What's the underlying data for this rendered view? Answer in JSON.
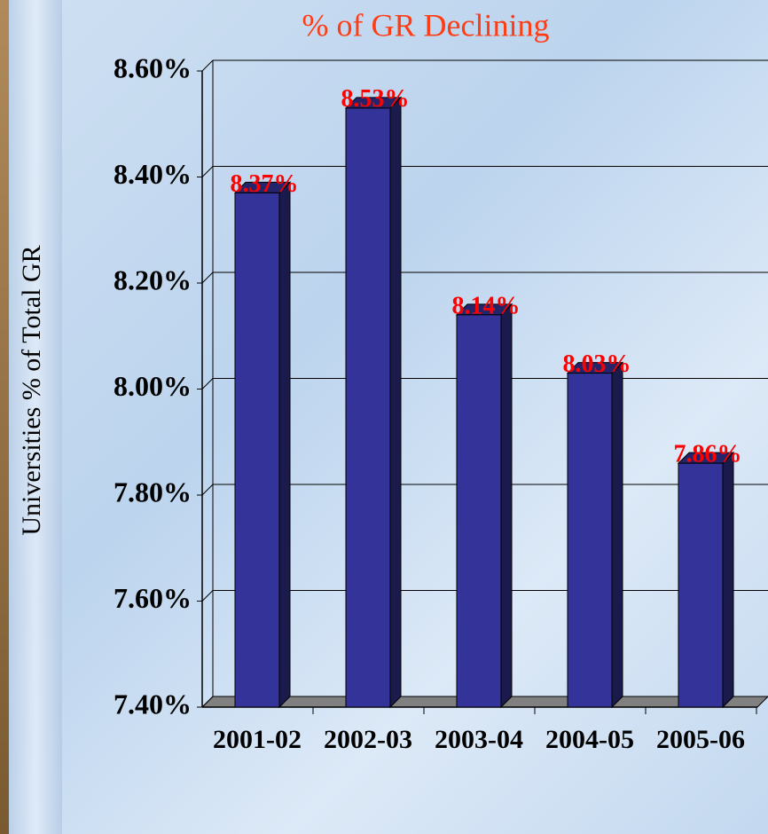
{
  "chart_data": {
    "type": "bar",
    "title": "% of GR Declining",
    "y_label": "Universities % of Total GR",
    "categories": [
      "2001-02",
      "2002-03",
      "2003-04",
      "2004-05",
      "2005-06"
    ],
    "values": [
      8.37,
      8.53,
      8.14,
      8.03,
      7.86
    ],
    "value_labels": [
      "8.37%",
      "8.53%",
      "8.14%",
      "8.03%",
      "7.86%"
    ],
    "color": "#333399",
    "ylim": [
      7.4,
      8.6
    ],
    "yticks": [
      {
        "value": 7.4,
        "label": "7.40%"
      },
      {
        "value": 7.6,
        "label": "7.60%"
      },
      {
        "value": 7.8,
        "label": "7.80%"
      },
      {
        "value": 8.0,
        "label": "8.00%"
      },
      {
        "value": 8.2,
        "label": "8.20%"
      },
      {
        "value": 8.4,
        "label": "8.40%"
      },
      {
        "value": 8.6,
        "label": "8.60%"
      }
    ],
    "grid": true
  }
}
